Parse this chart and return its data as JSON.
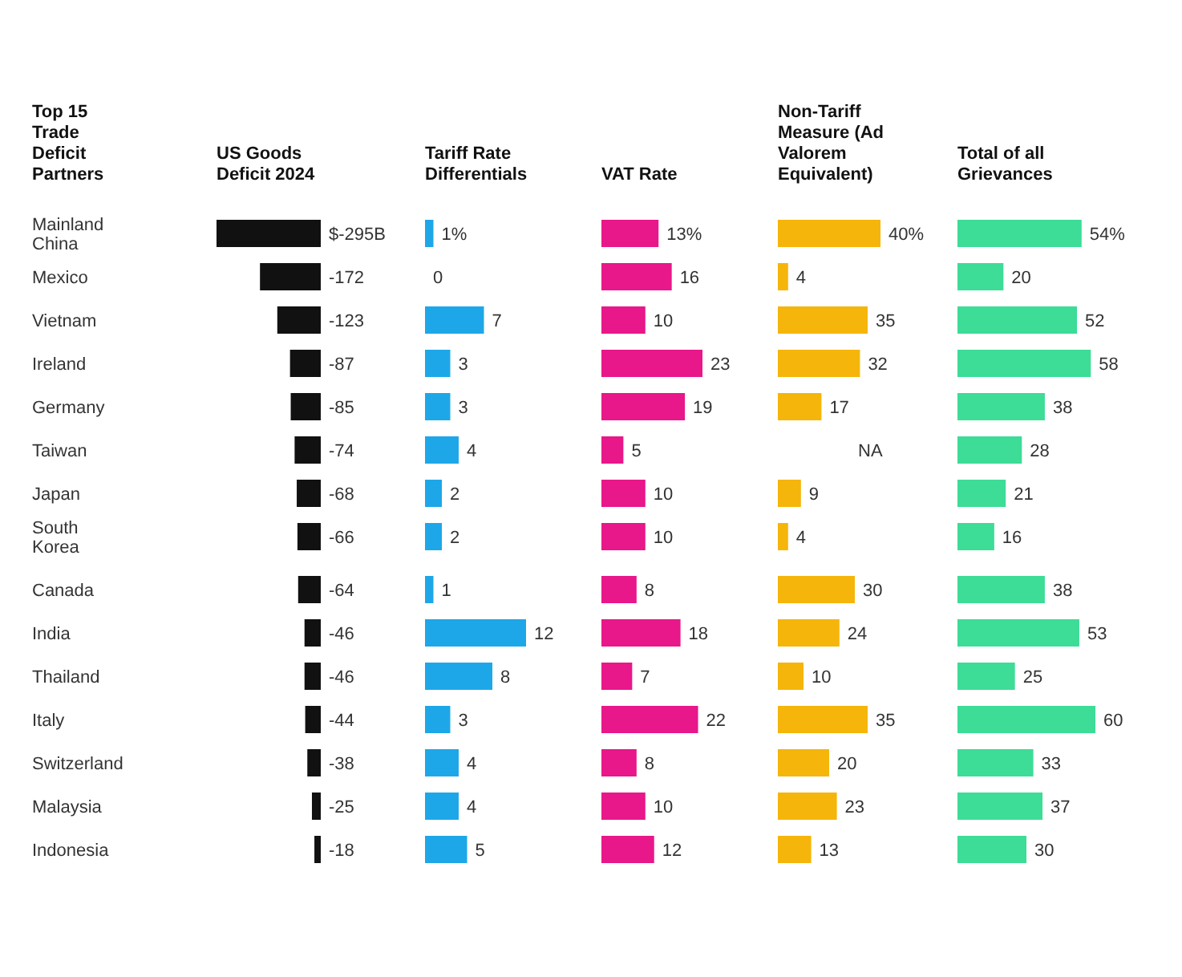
{
  "chart_data": [
    {
      "type": "bar",
      "orientation": "horizontal",
      "title": "US Goods Deficit 2024",
      "ylabel": "Top 15 Trade Deficit Partners",
      "tick_labels": "y",
      "color": "#111111",
      "categories": [
        "Mainland China",
        "Mexico",
        "Vietnam",
        "Ireland",
        "Germany",
        "Taiwan",
        "Japan",
        "South Korea",
        "Canada",
        "India",
        "Thailand",
        "Italy",
        "Switzerland",
        "Malaysia",
        "Indonesia"
      ],
      "values": [
        -295,
        -172,
        -123,
        -87,
        -85,
        -74,
        -68,
        -66,
        -64,
        -46,
        -46,
        -44,
        -38,
        -25,
        -18
      ],
      "value_labels": [
        "$-295B",
        "-172",
        "-123",
        "-87",
        "-85",
        "-74",
        "-68",
        "-66",
        "-64",
        "-46",
        "-46",
        "-44",
        "-38",
        "-25",
        "-18"
      ]
    },
    {
      "type": "bar",
      "orientation": "horizontal",
      "title": "Tariff Rate Differentials",
      "tick_labels": false,
      "color": "#1ea7e8",
      "categories": [
        null,
        null,
        null,
        null,
        null,
        null,
        null,
        null,
        null,
        null,
        null,
        null,
        null,
        null,
        null
      ],
      "values": [
        1,
        0,
        7,
        3,
        3,
        4,
        2,
        2,
        1,
        12,
        8,
        3,
        4,
        4,
        5
      ],
      "value_labels": [
        "1%",
        "0",
        "7",
        "3",
        "3",
        "4",
        "2",
        "2",
        "1",
        "12",
        "8",
        "3",
        "4",
        "4",
        "5"
      ]
    },
    {
      "type": "bar",
      "orientation": "horizontal",
      "title": "VAT Rate",
      "tick_labels": false,
      "color": "#e8178a",
      "categories": [
        null,
        null,
        null,
        null,
        null,
        null,
        null,
        null,
        null,
        null,
        null,
        null,
        null,
        null,
        null
      ],
      "values": [
        13,
        16,
        10,
        23,
        19,
        5,
        10,
        10,
        8,
        18,
        7,
        22,
        8,
        10,
        12
      ],
      "value_labels": [
        "13%",
        "16",
        "10",
        "23",
        "19",
        "5",
        "10",
        "10",
        "8",
        "18",
        "7",
        "22",
        "8",
        "10",
        "12"
      ]
    },
    {
      "type": "bar",
      "orientation": "horizontal",
      "title": "Non-Tariff Measure (Ad Valorem Equivalent)",
      "tick_labels": false,
      "color": "#f5b50a",
      "categories": [
        null,
        null,
        null,
        null,
        null,
        null,
        null,
        null,
        null,
        null,
        null,
        null,
        null,
        null,
        null
      ],
      "values": [
        40,
        4,
        35,
        32,
        17,
        null,
        9,
        4,
        30,
        24,
        10,
        35,
        20,
        23,
        13
      ],
      "value_labels": [
        "40%",
        "4",
        "35",
        "32",
        "17",
        "NA",
        "9",
        "4",
        "30",
        "24",
        "10",
        "35",
        "20",
        "23",
        "13"
      ]
    },
    {
      "type": "bar",
      "orientation": "horizontal",
      "title": "Total of all Grievances",
      "tick_labels": false,
      "color": "#3ddc97",
      "categories": [
        null,
        null,
        null,
        null,
        null,
        null,
        null,
        null,
        null,
        null,
        null,
        null,
        null,
        null,
        null
      ],
      "values": [
        54,
        20,
        52,
        58,
        38,
        28,
        21,
        16,
        38,
        53,
        25,
        60,
        33,
        37,
        30
      ],
      "value_labels": [
        "54%",
        "20",
        "52",
        "58",
        "38",
        "28",
        "21",
        "16",
        "38",
        "53",
        "25",
        "60",
        "33",
        "37",
        "30"
      ]
    }
  ]
}
